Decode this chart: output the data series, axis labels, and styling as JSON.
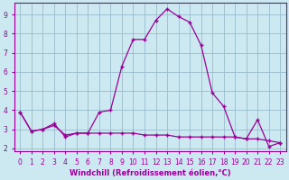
{
  "title": "",
  "xlabel": "Windchill (Refroidissement éolien,°C)",
  "background_color": "#cce8f0",
  "grid_color": "#99bbcc",
  "line_color": "#990099",
  "xlim_min": -0.5,
  "xlim_max": 23.5,
  "ylim_min": 1.85,
  "ylim_max": 9.6,
  "yticks": [
    2,
    3,
    4,
    5,
    6,
    7,
    8,
    9
  ],
  "xticks": [
    0,
    1,
    2,
    3,
    4,
    5,
    6,
    7,
    8,
    9,
    10,
    11,
    12,
    13,
    14,
    15,
    16,
    17,
    18,
    19,
    20,
    21,
    22,
    23
  ],
  "series1_x": [
    0,
    1,
    2,
    3,
    4,
    5,
    6,
    7,
    8,
    9,
    10,
    11,
    12,
    13,
    14,
    15,
    16,
    17,
    18,
    19,
    20,
    21,
    22,
    23
  ],
  "series1_y": [
    3.9,
    2.9,
    3.0,
    3.3,
    2.6,
    2.8,
    2.8,
    3.9,
    4.0,
    6.3,
    7.7,
    7.7,
    8.7,
    9.3,
    8.9,
    8.6,
    7.4,
    4.9,
    4.2,
    2.6,
    2.5,
    3.5,
    2.1,
    2.3
  ],
  "series2_x": [
    0,
    1,
    2,
    3,
    4,
    5,
    6,
    7,
    8,
    9,
    10,
    11,
    12,
    13,
    14,
    15,
    16,
    17,
    18,
    19,
    20,
    21,
    22,
    23
  ],
  "series2_y": [
    3.9,
    2.9,
    3.0,
    3.2,
    2.7,
    2.8,
    2.8,
    2.8,
    2.8,
    2.8,
    2.8,
    2.7,
    2.7,
    2.7,
    2.6,
    2.6,
    2.6,
    2.6,
    2.6,
    2.6,
    2.5,
    2.5,
    2.4,
    2.3
  ],
  "tick_fontsize": 5.5,
  "xlabel_fontsize": 6.0,
  "linewidth": 0.9,
  "markersize": 3.5,
  "markeredgewidth": 1.0
}
